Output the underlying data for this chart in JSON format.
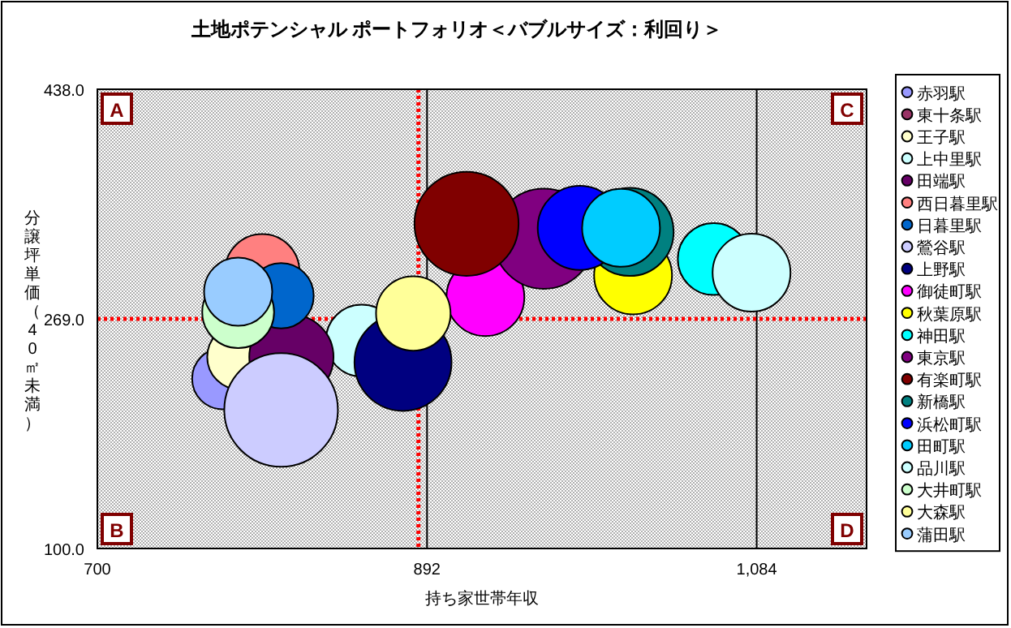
{
  "chart_data": {
    "type": "bubble",
    "title": "土地ポテンシャル ポートフォリオ＜バブルサイズ：利回り＞",
    "xlabel": "持ち家世帯年収",
    "ylabel": "分譲坪単価（40㎡未満）",
    "xlim": [
      700,
      1148
    ],
    "ylim": [
      100,
      438
    ],
    "xticks": [
      700,
      892,
      {
        "value": 1084,
        "label": "1,084"
      }
    ],
    "yticks": [
      {
        "value": 100,
        "label": "100.0"
      },
      {
        "value": 269,
        "label": "269.0"
      },
      {
        "value": 438,
        "label": "438.0"
      }
    ],
    "grid": "x",
    "legend": "right",
    "annotations": [
      "A",
      "B",
      "C",
      "D"
    ],
    "ref_lines": [
      {
        "axis": "x",
        "value": 887,
        "color": "#ff0000",
        "line_style": "dotted"
      },
      {
        "axis": "y",
        "value": 269,
        "color": "#ff0000",
        "line_style": "dotted"
      }
    ],
    "series": [
      {
        "name": "赤羽駅",
        "color": "#9999ff",
        "x": [
          773
        ],
        "values": [
          225
        ],
        "sizes": [
          0.29
        ]
      },
      {
        "name": "東十条駅",
        "color": "#993366",
        "x": [
          null
        ],
        "values": [
          null
        ],
        "sizes": [
          null
        ]
      },
      {
        "name": "王子駅",
        "color": "#ffffcc",
        "x": [
          783
        ],
        "values": [
          241
        ],
        "sizes": [
          0.33
        ]
      },
      {
        "name": "上中里駅",
        "color": "#ccffff",
        "x": [
          854
        ],
        "values": [
          253
        ],
        "sizes": [
          0.4
        ]
      },
      {
        "name": "田端駅",
        "color": "#660066",
        "x": [
          813
        ],
        "values": [
          241
        ],
        "sizes": [
          0.55
        ]
      },
      {
        "name": "西日暮里駅",
        "color": "#ff8080",
        "x": [
          796
        ],
        "values": [
          304
        ],
        "sizes": [
          0.43
        ]
      },
      {
        "name": "日暮里駅",
        "color": "#0066cc",
        "x": [
          807
        ],
        "values": [
          286
        ],
        "sizes": [
          0.33
        ]
      },
      {
        "name": "鶯谷駅",
        "color": "#ccccff",
        "x": [
          807
        ],
        "values": [
          202
        ],
        "sizes": [
          1
        ]
      },
      {
        "name": "上野駅",
        "color": "#000080",
        "x": [
          878
        ],
        "values": [
          237
        ],
        "sizes": [
          0.73
        ]
      },
      {
        "name": "御徒町駅",
        "color": "#ff00ff",
        "x": [
          926
        ],
        "values": [
          285
        ],
        "sizes": [
          0.47
        ]
      },
      {
        "name": "秋葉原駅",
        "color": "#ffff00",
        "x": [
          1012
        ],
        "values": [
          301
        ],
        "sizes": [
          0.47
        ]
      },
      {
        "name": "神田駅",
        "color": "#00ffff",
        "x": [
          1059
        ],
        "values": [
          313
        ],
        "sizes": [
          0.4
        ]
      },
      {
        "name": "東京駅",
        "color": "#800080",
        "x": [
          960
        ],
        "values": [
          328
        ],
        "sizes": [
          0.78
        ]
      },
      {
        "name": "有楽町駅",
        "color": "#800000",
        "x": [
          915
        ],
        "values": [
          339
        ],
        "sizes": [
          0.84
        ]
      },
      {
        "name": "新橋駅",
        "color": "#008080",
        "x": [
          1010
        ],
        "values": [
          333
        ],
        "sizes": [
          0.6
        ]
      },
      {
        "name": "浜松町駅",
        "color": "#0000ff",
        "x": [
          981
        ],
        "values": [
          336
        ],
        "sizes": [
          0.55
        ]
      },
      {
        "name": "田町駅",
        "color": "#00ccff",
        "x": [
          1005
        ],
        "values": [
          336
        ],
        "sizes": [
          0.47
        ]
      },
      {
        "name": "品川駅",
        "color": "#ccffff",
        "x": [
          1081
        ],
        "values": [
          303
        ],
        "sizes": [
          0.47
        ]
      },
      {
        "name": "大井町駅",
        "color": "#ccffcc",
        "x": [
          782
        ],
        "values": [
          274
        ],
        "sizes": [
          0.4
        ]
      },
      {
        "name": "大森駅",
        "color": "#ffff99",
        "x": [
          884
        ],
        "values": [
          273
        ],
        "sizes": [
          0.43
        ]
      },
      {
        "name": "蒲田駅",
        "color": "#99ccff",
        "x": [
          782
        ],
        "values": [
          289
        ],
        "sizes": [
          0.36
        ]
      }
    ]
  }
}
